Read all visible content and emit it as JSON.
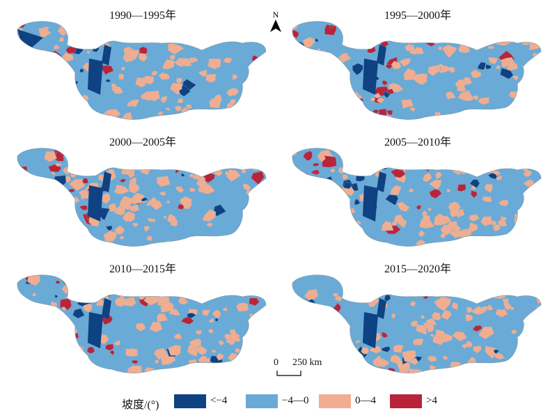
{
  "panels": [
    {
      "title": "1990—1995年"
    },
    {
      "title": "1995—2000年"
    },
    {
      "title": "2000—2005年"
    },
    {
      "title": "2005—2010年"
    },
    {
      "title": "2010—2015年"
    },
    {
      "title": "2015—2020年"
    }
  ],
  "north_arrow": {
    "letter": "N"
  },
  "scale_bar": {
    "zero": "0",
    "value": "250 km"
  },
  "legend": {
    "title": "坡度/(°)",
    "items": [
      {
        "label": "<−4",
        "color": "#0e4282"
      },
      {
        "label": "−4—0",
        "color": "#6aaad6"
      },
      {
        "label": "0—4",
        "color": "#f0ad8f"
      },
      {
        "label": ">4",
        "color": "#b8253a"
      }
    ]
  }
}
